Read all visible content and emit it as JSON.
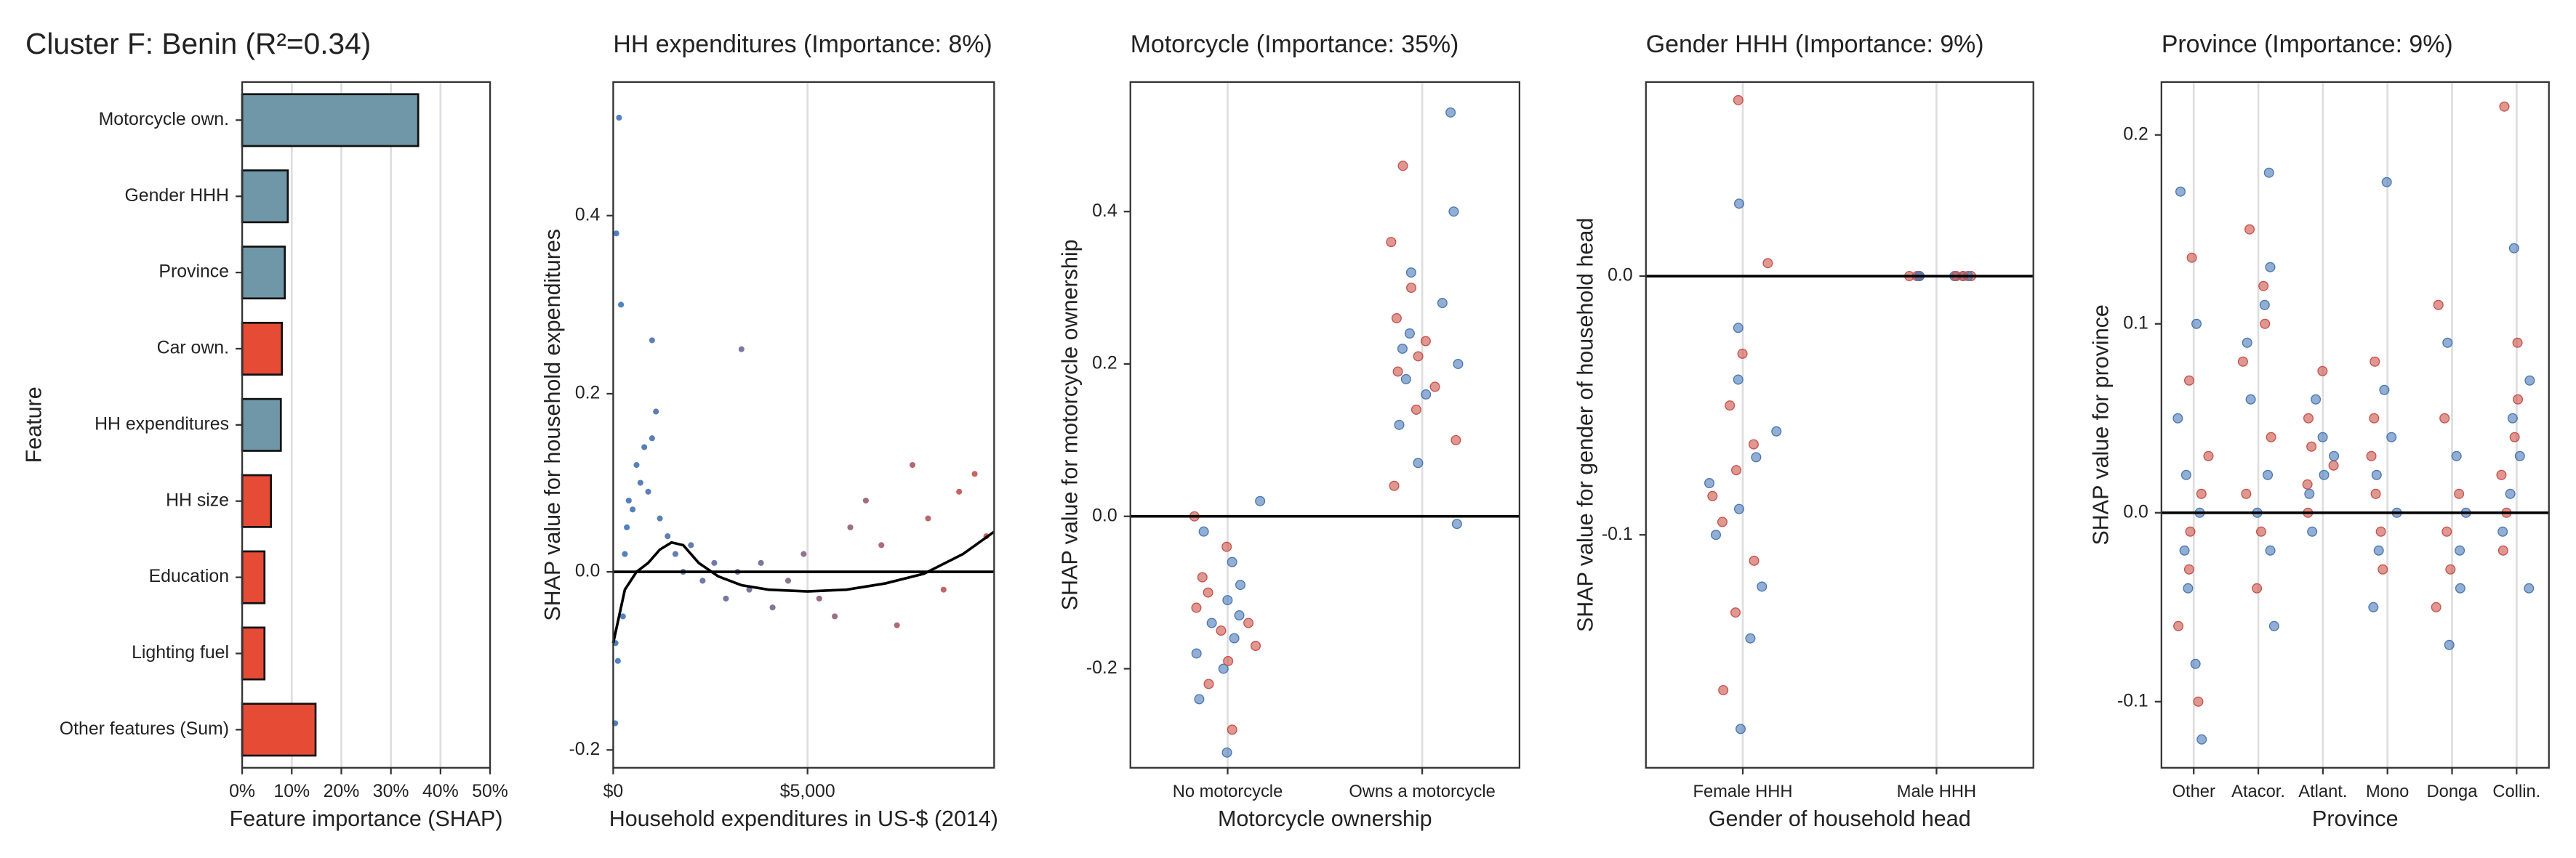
{
  "chart_data": [
    {
      "type": "bar",
      "orientation": "horizontal",
      "title": "Cluster F: Benin (R²=0.34)",
      "categories": [
        "Motorcycle own.",
        "Gender HHH",
        "Province",
        "Car own.",
        "HH expenditures",
        "HH size",
        "Education",
        "Lighting fuel",
        "Other features (Sum)"
      ],
      "values": [
        35.5,
        9.2,
        8.6,
        8.0,
        7.8,
        5.8,
        4.5,
        4.5,
        14.8
      ],
      "colors": [
        "#6f97a8",
        "#6f97a8",
        "#6f97a8",
        "#e64b35",
        "#6f97a8",
        "#e64b35",
        "#e64b35",
        "#e64b35",
        "#e64b35"
      ],
      "xlim": [
        0,
        50
      ],
      "xticks": [
        {
          "value": 0,
          "label": "0%"
        },
        {
          "value": 10,
          "label": "10%"
        },
        {
          "value": 20,
          "label": "20%"
        },
        {
          "value": 30,
          "label": "30%"
        },
        {
          "value": 40,
          "label": "40%"
        },
        {
          "value": 50,
          "label": "50%"
        }
      ],
      "xlabel": "Feature importance (SHAP)",
      "ylabel": "Feature",
      "grid": "x"
    },
    {
      "type": "scatter",
      "title": "HH expenditures (Importance: 8%)",
      "x": [
        50,
        80,
        120,
        150,
        200,
        250,
        300,
        350,
        400,
        500,
        600,
        700,
        800,
        900,
        1000,
        1100,
        1200,
        1400,
        1600,
        1800,
        2000,
        2300,
        2600,
        2900,
        3200,
        3500,
        3800,
        4100,
        4500,
        4900,
        5300,
        5700,
        6100,
        6500,
        6900,
        7300,
        7700,
        8100,
        8500,
        8900,
        9300,
        9600,
        60,
        3300,
        1000
      ],
      "values": [
        -0.17,
        0.38,
        -0.1,
        0.51,
        0.3,
        -0.05,
        0.02,
        0.05,
        0.08,
        0.07,
        0.12,
        0.1,
        0.14,
        0.09,
        0.15,
        0.18,
        0.06,
        0.04,
        0.02,
        0.0,
        0.03,
        -0.01,
        0.01,
        -0.03,
        0.0,
        -0.02,
        0.01,
        -0.04,
        -0.01,
        0.02,
        -0.03,
        -0.05,
        0.05,
        0.08,
        0.03,
        -0.06,
        0.12,
        0.06,
        -0.02,
        0.09,
        0.11,
        0.04,
        -0.08,
        0.25,
        0.26
      ],
      "trend": {
        "x": [
          0,
          300,
          600,
          900,
          1200,
          1500,
          1800,
          2200,
          2700,
          3300,
          4000,
          5000,
          6000,
          7000,
          8000,
          9000,
          9800
        ],
        "values": [
          -0.08,
          -0.02,
          0.0,
          0.01,
          0.025,
          0.033,
          0.03,
          0.01,
          -0.005,
          -0.015,
          -0.02,
          -0.022,
          -0.02,
          -0.013,
          -0.002,
          0.02,
          0.045
        ]
      },
      "colors": [
        "#2f6db5",
        "#c8473d"
      ],
      "xlim": [
        0,
        9800
      ],
      "xticks": [
        {
          "value": 0,
          "label": "$0"
        },
        {
          "value": 5000,
          "label": "$5,000"
        }
      ],
      "ylim": [
        -0.22,
        0.55
      ],
      "yticks": [
        -0.2,
        {
          "value": 0,
          "label": "0.0"
        },
        0.2,
        0.4
      ],
      "hline": 0,
      "grid": "x",
      "xlabel": "Household expenditures in US-$ (2014)",
      "ylabel": "SHAP value for household expenditures"
    },
    {
      "type": "strip",
      "title": "Motorcycle (Importance: 35%)",
      "categories": [
        "No motorcycle",
        "Owns a motorcycle"
      ],
      "groups": [
        [
          -0.31,
          -0.28,
          -0.24,
          -0.22,
          -0.2,
          -0.19,
          -0.18,
          -0.17,
          -0.16,
          -0.15,
          -0.14,
          -0.14,
          -0.13,
          -0.12,
          -0.11,
          -0.1,
          -0.09,
          -0.08,
          -0.06,
          -0.04,
          -0.02,
          0.0,
          0.02
        ],
        [
          -0.01,
          0.04,
          0.07,
          0.1,
          0.12,
          0.14,
          0.16,
          0.17,
          0.18,
          0.19,
          0.2,
          0.21,
          0.22,
          0.23,
          0.24,
          0.26,
          0.28,
          0.3,
          0.32,
          0.36,
          0.4,
          0.46,
          0.53
        ]
      ],
      "colors": [
        "#4a78b5",
        "#c9524a"
      ],
      "ylim": [
        -0.33,
        0.57
      ],
      "yticks": [
        -0.2,
        {
          "value": 0,
          "label": "0.0"
        },
        0.2,
        0.4
      ],
      "hline": 0,
      "grid": "x",
      "xlabel": "Motorcycle ownership",
      "ylabel": "SHAP value for motorcycle ownership"
    },
    {
      "type": "strip",
      "title": "Gender HHH (Importance: 9%)",
      "categories": [
        "Female HHH",
        "Male HHH"
      ],
      "groups": [
        [
          -0.175,
          -0.16,
          -0.14,
          -0.13,
          -0.12,
          -0.11,
          -0.1,
          -0.095,
          -0.09,
          -0.085,
          -0.08,
          -0.075,
          -0.07,
          -0.065,
          -0.06,
          -0.05,
          -0.04,
          -0.03,
          -0.02,
          0.005,
          0.028,
          0.068
        ],
        [
          0,
          0,
          0,
          0,
          0,
          0,
          0,
          0,
          0,
          0
        ]
      ],
      "colors": [
        "#4a78b5",
        "#c9524a"
      ],
      "ylim": [
        -0.19,
        0.075
      ],
      "yticks": [
        -0.1,
        {
          "value": 0,
          "label": "0.0"
        }
      ],
      "hline": 0,
      "grid": "x",
      "xlabel": "Gender of household head",
      "ylabel": "SHAP value for gender of household head"
    },
    {
      "type": "strip",
      "title": "Province (Importance: 9%)",
      "categories": [
        "Other",
        "Atacor.",
        "Atlant.",
        "Mono",
        "Donga",
        "Collin."
      ],
      "groups": [
        [
          -0.12,
          -0.1,
          -0.08,
          -0.06,
          -0.04,
          -0.03,
          -0.02,
          -0.01,
          0,
          0.01,
          0.02,
          0.03,
          0.05,
          0.07,
          0.1,
          0.135,
          0.17
        ],
        [
          -0.06,
          -0.04,
          -0.02,
          -0.01,
          0,
          0.01,
          0.02,
          0.04,
          0.06,
          0.08,
          0.09,
          0.1,
          0.11,
          0.12,
          0.13,
          0.15,
          0.18
        ],
        [
          -0.01,
          0,
          0.01,
          0.015,
          0.02,
          0.025,
          0.03,
          0.035,
          0.04,
          0.05,
          0.06,
          0.075
        ],
        [
          -0.05,
          -0.03,
          -0.02,
          -0.01,
          0,
          0.01,
          0.02,
          0.03,
          0.04,
          0.05,
          0.065,
          0.08,
          0.175
        ],
        [
          -0.07,
          -0.05,
          -0.04,
          -0.03,
          -0.02,
          -0.01,
          0,
          0.01,
          0.03,
          0.05,
          0.09,
          0.11
        ],
        [
          -0.04,
          -0.02,
          -0.01,
          0,
          0.01,
          0.02,
          0.03,
          0.04,
          0.05,
          0.06,
          0.07,
          0.09,
          0.14,
          0.215
        ]
      ],
      "colors": [
        "#4a78b5",
        "#c9524a"
      ],
      "ylim": [
        -0.135,
        0.228
      ],
      "yticks": [
        -0.1,
        {
          "value": 0,
          "label": "0.0"
        },
        0.1,
        0.2
      ],
      "hline": 0,
      "grid": "x",
      "xlabel": "Province",
      "ylabel": "SHAP value for province"
    }
  ]
}
